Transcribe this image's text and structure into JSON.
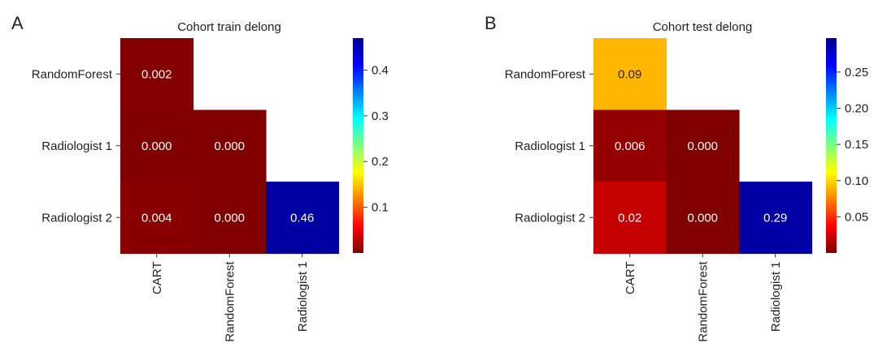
{
  "chart_data": [
    {
      "type": "heatmap",
      "panel_label": "A",
      "title": "Cohort train delong",
      "row_labels": [
        "RandomForest",
        "Radiologist 1",
        "Radiologist 2"
      ],
      "col_labels": [
        "CART",
        "RandomForest",
        "Radiologist 1"
      ],
      "cells": [
        {
          "row": "RandomForest",
          "col": "CART",
          "value": 0.002,
          "label": "0.002"
        },
        {
          "row": "Radiologist 1",
          "col": "CART",
          "value": 0.0,
          "label": "0.000"
        },
        {
          "row": "Radiologist 1",
          "col": "RandomForest",
          "value": 0.0,
          "label": "0.000"
        },
        {
          "row": "Radiologist 2",
          "col": "CART",
          "value": 0.004,
          "label": "0.004"
        },
        {
          "row": "Radiologist 2",
          "col": "RandomForest",
          "value": 0.0,
          "label": "0.000"
        },
        {
          "row": "Radiologist 2",
          "col": "Radiologist 1",
          "value": 0.46,
          "label": "0.46"
        }
      ],
      "colorbar": {
        "colormap": "jet_r",
        "range": [
          0.0,
          0.47
        ],
        "ticks": [
          0.1,
          0.2,
          0.3,
          0.4
        ],
        "tick_labels": [
          "0.1",
          "0.2",
          "0.3",
          "0.4"
        ]
      }
    },
    {
      "type": "heatmap",
      "panel_label": "B",
      "title": "Cohort test delong",
      "row_labels": [
        "RandomForest",
        "Radiologist 1",
        "Radiologist 2"
      ],
      "col_labels": [
        "CART",
        "RandomForest",
        "Radiologist 1"
      ],
      "cells": [
        {
          "row": "RandomForest",
          "col": "CART",
          "value": 0.09,
          "label": "0.09"
        },
        {
          "row": "Radiologist 1",
          "col": "CART",
          "value": 0.006,
          "label": "0.006"
        },
        {
          "row": "Radiologist 1",
          "col": "RandomForest",
          "value": 0.0,
          "label": "0.000"
        },
        {
          "row": "Radiologist 2",
          "col": "CART",
          "value": 0.02,
          "label": "0.02"
        },
        {
          "row": "Radiologist 2",
          "col": "RandomForest",
          "value": 0.0,
          "label": "0.000"
        },
        {
          "row": "Radiologist 2",
          "col": "Radiologist 1",
          "value": 0.29,
          "label": "0.29"
        }
      ],
      "colorbar": {
        "colormap": "jet_r",
        "range": [
          0.0,
          0.297
        ],
        "ticks": [
          0.05,
          0.1,
          0.15,
          0.2,
          0.25
        ],
        "tick_labels": [
          "0.05",
          "0.10",
          "0.15",
          "0.20",
          "0.25"
        ]
      }
    }
  ]
}
